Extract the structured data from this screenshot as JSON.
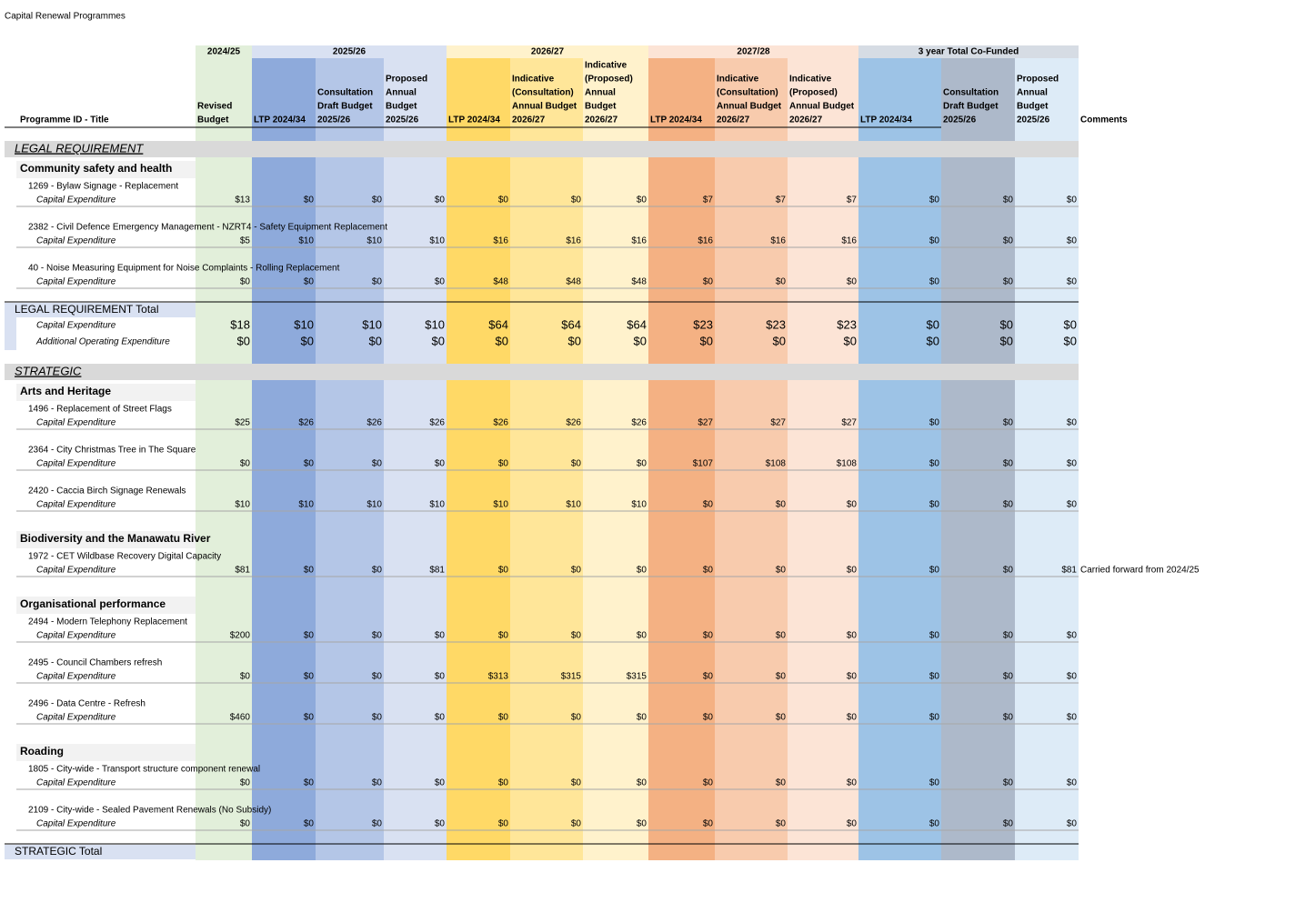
{
  "title": "Capital Renewal Programmes",
  "header": {
    "label": "Programme ID - Title",
    "comments": "Comments",
    "groups": [
      "2024/25",
      "2025/26",
      "2026/27",
      "2027/28",
      "3 year Total Co-Funded"
    ],
    "columns": [
      [
        "Revised",
        "Budget"
      ],
      [
        "LTP 2024/34"
      ],
      [
        "Consultation",
        "Draft Budget",
        "2025/26"
      ],
      [
        "Proposed",
        "Annual",
        "Budget",
        "2025/26"
      ],
      [
        "LTP 2024/34"
      ],
      [
        "Indicative",
        "(Consultation)",
        "Annual Budget",
        "2026/27"
      ],
      [
        "Indicative",
        "(Proposed)",
        "Annual",
        "Budget",
        "2026/27"
      ],
      [
        "LTP 2024/34"
      ],
      [
        "Indicative",
        "(Consultation)",
        "Annual Budget",
        "2026/27"
      ],
      [
        "Indicative",
        "(Proposed)",
        "Annual Budget",
        "2026/27"
      ],
      [
        "LTP 2024/34"
      ],
      [
        "Consultation",
        "Draft Budget",
        "2025/26"
      ],
      [
        "Proposed",
        "Annual",
        "Budget",
        "2025/26"
      ]
    ]
  },
  "sections": [
    {
      "title": "LEGAL REQUIREMENT",
      "groups": [
        {
          "title": "Community safety and health",
          "items": [
            {
              "title": "1269 - Bylaw Signage - Replacement",
              "label": "Capital Expenditure",
              "values": [
                "$13",
                "$0",
                "$0",
                "$0",
                "$0",
                "$0",
                "$0",
                "$7",
                "$7",
                "$7",
                "$0",
                "$0",
                "$0"
              ]
            },
            {
              "title": "2382 - Civil Defence Emergency Management - NZRT4 -  Safety Equipment Replacement",
              "label": "Capital Expenditure",
              "values": [
                "$5",
                "$10",
                "$10",
                "$10",
                "$16",
                "$16",
                "$16",
                "$16",
                "$16",
                "$16",
                "$0",
                "$0",
                "$0"
              ]
            },
            {
              "title": "40 - Noise Measuring Equipment for Noise Complaints - Rolling Replacement",
              "label": "Capital Expenditure",
              "values": [
                "$0",
                "$0",
                "$0",
                "$0",
                "$48",
                "$48",
                "$48",
                "$0",
                "$0",
                "$0",
                "$0",
                "$0",
                "$0"
              ]
            }
          ]
        }
      ],
      "total": {
        "title": "LEGAL REQUIREMENT Total",
        "rows": [
          {
            "label": "Capital Expenditure",
            "values": [
              "$18",
              "$10",
              "$10",
              "$10",
              "$64",
              "$64",
              "$64",
              "$23",
              "$23",
              "$23",
              "$0",
              "$0",
              "$0"
            ]
          },
          {
            "label": "Additional Operating Expenditure",
            "values": [
              "$0",
              "$0",
              "$0",
              "$0",
              "$0",
              "$0",
              "$0",
              "$0",
              "$0",
              "$0",
              "$0",
              "$0",
              "$0"
            ]
          }
        ]
      }
    },
    {
      "title": "STRATEGIC",
      "groups": [
        {
          "title": "Arts and Heritage",
          "items": [
            {
              "title": "1496 - Replacement of Street Flags",
              "label": "Capital Expenditure",
              "values": [
                "$25",
                "$26",
                "$26",
                "$26",
                "$26",
                "$26",
                "$26",
                "$27",
                "$27",
                "$27",
                "$0",
                "$0",
                "$0"
              ]
            },
            {
              "title": "2364 - City Christmas Tree in The Square",
              "label": "Capital Expenditure",
              "values": [
                "$0",
                "$0",
                "$0",
                "$0",
                "$0",
                "$0",
                "$0",
                "$107",
                "$108",
                "$108",
                "$0",
                "$0",
                "$0"
              ]
            },
            {
              "title": "2420 - Caccia Birch Signage Renewals",
              "label": "Capital Expenditure",
              "values": [
                "$10",
                "$10",
                "$10",
                "$10",
                "$10",
                "$10",
                "$10",
                "$0",
                "$0",
                "$0",
                "$0",
                "$0",
                "$0"
              ]
            }
          ]
        },
        {
          "title": "Biodiversity and the Manawatu River",
          "items": [
            {
              "title": "1972 - CET Wildbase Recovery Digital Capacity",
              "label": "Capital Expenditure",
              "values": [
                "$81",
                "$0",
                "$0",
                "$81",
                "$0",
                "$0",
                "$0",
                "$0",
                "$0",
                "$0",
                "$0",
                "$0",
                "$81"
              ],
              "comment": "Carried forward from 2024/25"
            }
          ]
        },
        {
          "title": "Organisational performance",
          "items": [
            {
              "title": "2494 - Modern Telephony Replacement",
              "label": "Capital Expenditure",
              "values": [
                "$200",
                "$0",
                "$0",
                "$0",
                "$0",
                "$0",
                "$0",
                "$0",
                "$0",
                "$0",
                "$0",
                "$0",
                "$0"
              ]
            },
            {
              "title": "2495 - Council Chambers refresh",
              "label": "Capital Expenditure",
              "values": [
                "$0",
                "$0",
                "$0",
                "$0",
                "$313",
                "$315",
                "$315",
                "$0",
                "$0",
                "$0",
                "$0",
                "$0",
                "$0"
              ]
            },
            {
              "title": "2496 - Data Centre - Refresh",
              "label": "Capital Expenditure",
              "values": [
                "$460",
                "$0",
                "$0",
                "$0",
                "$0",
                "$0",
                "$0",
                "$0",
                "$0",
                "$0",
                "$0",
                "$0",
                "$0"
              ]
            }
          ]
        },
        {
          "title": "Roading",
          "items": [
            {
              "title": "1805 - City-wide - Transport structure component renewal",
              "label": "Capital Expenditure",
              "values": [
                "$0",
                "$0",
                "$0",
                "$0",
                "$0",
                "$0",
                "$0",
                "$0",
                "$0",
                "$0",
                "$0",
                "$0",
                "$0"
              ]
            },
            {
              "title": "2109 - City-wide - Sealed Pavement Renewals (No Subsidy)",
              "label": "Capital Expenditure",
              "values": [
                "$0",
                "$0",
                "$0",
                "$0",
                "$0",
                "$0",
                "$0",
                "$0",
                "$0",
                "$0",
                "$0",
                "$0",
                "$0"
              ]
            }
          ]
        }
      ],
      "total": {
        "title": "STRATEGIC Total",
        "rows": []
      }
    }
  ]
}
